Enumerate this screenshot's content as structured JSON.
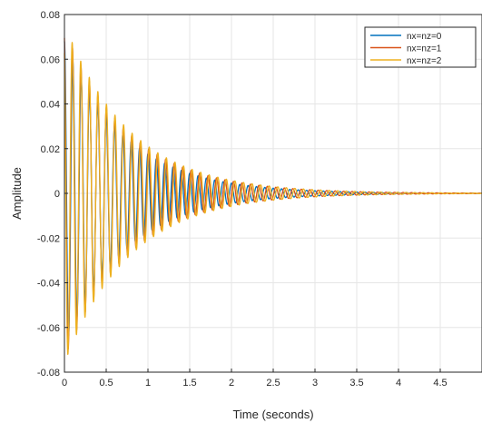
{
  "chart_data": {
    "type": "line",
    "title": "",
    "xlabel": "Time (seconds)",
    "ylabel": "Amplitude",
    "xlim": [
      0,
      5
    ],
    "ylim": [
      -0.08,
      0.08
    ],
    "x_ticks": [
      "0",
      "0.5",
      "1",
      "1.5",
      "2",
      "2.5",
      "3",
      "3.5",
      "4",
      "4.5"
    ],
    "y_ticks": [
      "-0.08",
      "-0.06",
      "-0.04",
      "-0.02",
      "0",
      "0.02",
      "0.04",
      "0.06",
      "0.08"
    ],
    "grid": true,
    "legend_position": "top-right",
    "series": [
      {
        "name": "nx=nz=0",
        "color": "#0072BD",
        "initial_amplitude": 0.068,
        "decay_rate": 1.35,
        "frequency_hz": 10.0,
        "phase_rad": 0.0
      },
      {
        "name": "nx=nz=1",
        "color": "#D95319",
        "initial_amplitude": 0.074,
        "decay_rate": 1.3,
        "frequency_hz": 9.85,
        "phase_rad": 0.35
      },
      {
        "name": "nx=nz=2",
        "color": "#EDB120",
        "initial_amplitude": 0.076,
        "decay_rate": 1.28,
        "frequency_hz": 9.75,
        "phase_rad": 0.6
      }
    ]
  }
}
